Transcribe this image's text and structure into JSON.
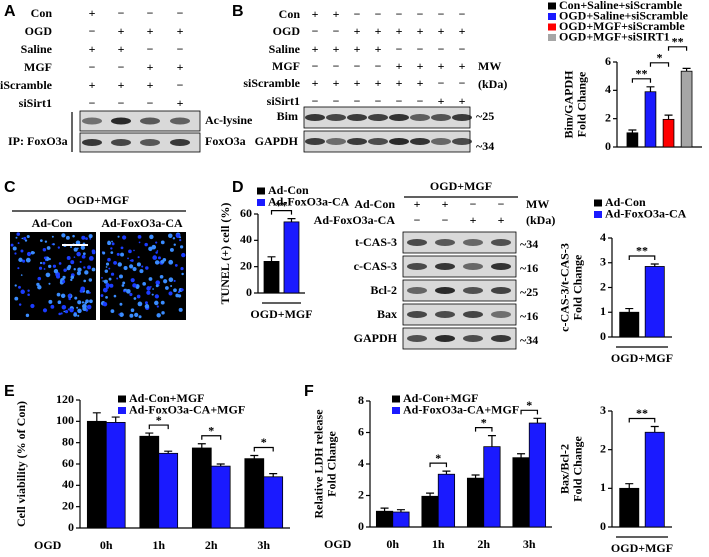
{
  "letters": [
    "A",
    "B",
    "C",
    "D",
    "E",
    "F"
  ],
  "panel_a": {
    "rows": [
      {
        "label": "Con",
        "signs": [
          "+",
          "−",
          "−",
          "−"
        ]
      },
      {
        "label": "OGD",
        "signs": [
          "−",
          "+",
          "+",
          "+"
        ]
      },
      {
        "label": "Saline",
        "signs": [
          "+",
          "+",
          "−",
          "−"
        ]
      },
      {
        "label": "MGF",
        "signs": [
          "−",
          "−",
          "+",
          "+"
        ]
      },
      {
        "label": "siScramble",
        "signs": [
          "+",
          "+",
          "+",
          "−"
        ]
      },
      {
        "label": "siSirt1",
        "signs": [
          "−",
          "−",
          "−",
          "+"
        ]
      }
    ],
    "blots": [
      "Ac-lysine",
      "FoxO3a"
    ],
    "ip_label": "IP: FoxO3a"
  },
  "panel_b": {
    "rows": [
      {
        "label": "Con",
        "signs": [
          "+",
          "+",
          "−",
          "−",
          "−",
          "−",
          "−",
          "−"
        ]
      },
      {
        "label": "OGD",
        "signs": [
          "−",
          "−",
          "+",
          "+",
          "+",
          "+",
          "+",
          "+"
        ]
      },
      {
        "label": "Saline",
        "signs": [
          "+",
          "+",
          "+",
          "+",
          "−",
          "−",
          "−",
          "−"
        ]
      },
      {
        "label": "MGF",
        "signs": [
          "−",
          "−",
          "−",
          "−",
          "+",
          "+",
          "+",
          "+"
        ]
      },
      {
        "label": "siScramble",
        "signs": [
          "+",
          "+",
          "+",
          "+",
          "+",
          "+",
          "−",
          "−"
        ]
      },
      {
        "label": "siSirt1",
        "signs": [
          "−",
          "−",
          "−",
          "−",
          "−",
          "−",
          "+",
          "+"
        ]
      }
    ],
    "mw_title": "MW",
    "mw_unit": "(kDa)",
    "blots": [
      {
        "label": "Bim",
        "mw": "~25"
      },
      {
        "label": "GAPDH",
        "mw": "~34"
      }
    ]
  },
  "panel_c": {
    "condition": "OGD+MGF",
    "images": [
      "Ad-Con",
      "Ad-FoxO3a-CA"
    ]
  },
  "panel_d": {
    "condition": "OGD+MGF",
    "rows": [
      {
        "label": "Ad-Con",
        "signs": [
          "+",
          "+",
          "−",
          "−"
        ]
      },
      {
        "label": "Ad-FoxO3a-CA",
        "signs": [
          "−",
          "−",
          "+",
          "+"
        ]
      }
    ],
    "mw_title": "MW",
    "mw_unit": "(kDa)",
    "blots": [
      {
        "label": "t-CAS-3",
        "mw": "~34"
      },
      {
        "label": "c-CAS-3",
        "mw": "~16"
      },
      {
        "label": "Bcl-2",
        "mw": "~25"
      },
      {
        "label": "Bax",
        "mw": "~16"
      },
      {
        "label": "GAPDH",
        "mw": "~34"
      }
    ]
  },
  "chart_data": [
    {
      "type": "bar",
      "ylabel": [
        "Bim/GAPDH",
        "Fold Change"
      ],
      "categories": [
        null
      ],
      "series": [
        {
          "name": "Con+Saline+siScramble",
          "color": "#000000",
          "values": [
            1.0
          ],
          "errors": [
            0.2
          ]
        },
        {
          "name": "OGD+Saline+siScramble",
          "color": "#1a1aff",
          "values": [
            3.9
          ],
          "errors": [
            0.35
          ]
        },
        {
          "name": "OGD+MGF+siScramble",
          "color": "#ff0000",
          "values": [
            1.95
          ],
          "errors": [
            0.3
          ]
        },
        {
          "name": "OGD+MGF+siSIRT1",
          "color": "#a6a6a6",
          "values": [
            5.35
          ],
          "errors": [
            0.2
          ]
        }
      ],
      "ylim": [
        0,
        6
      ],
      "yticks": [
        0,
        2,
        4,
        6
      ],
      "significance": [
        "**",
        "*",
        "**"
      ]
    },
    {
      "type": "bar",
      "ylabel": [
        "TUNEL (+) cell (%)"
      ],
      "xlabel": "OGD+MGF",
      "categories": [
        null
      ],
      "series": [
        {
          "name": "Ad-Con",
          "color": "#000000",
          "values": [
            24
          ],
          "errors": [
            3.5
          ]
        },
        {
          "name": "Ad-FoxO3a-CA",
          "color": "#1a1aff",
          "values": [
            54
          ],
          "errors": [
            2.5
          ]
        }
      ],
      "ylim": [
        0,
        60
      ],
      "yticks": [
        0,
        20,
        40,
        60
      ],
      "significance": [
        "**"
      ]
    },
    {
      "type": "bar",
      "ylabel": [
        "c-CAS-3/t-CAS-3",
        "Fold Change"
      ],
      "xlabel": "OGD+MGF",
      "categories": [
        null
      ],
      "series": [
        {
          "name": "Ad-Con",
          "color": "#000000",
          "values": [
            1.0
          ],
          "errors": [
            0.15
          ]
        },
        {
          "name": "Ad-FoxO3a-CA",
          "color": "#1a1aff",
          "values": [
            2.85
          ],
          "errors": [
            0.1
          ]
        }
      ],
      "ylim": [
        0,
        4
      ],
      "yticks": [
        0,
        1,
        2,
        3,
        4
      ],
      "significance": [
        "**"
      ]
    },
    {
      "type": "bar",
      "ylabel": [
        "Cell viability (% of Con)"
      ],
      "xlabel": "OGD",
      "categories": [
        "0h",
        "1h",
        "2h",
        "3h"
      ],
      "series": [
        {
          "name": "Ad-Con+MGF",
          "color": "#000000",
          "values": [
            100,
            86,
            75,
            65
          ],
          "errors": [
            8,
            3,
            4,
            3
          ]
        },
        {
          "name": "Ad-FoxO3a-CA+MGF",
          "color": "#1a1aff",
          "values": [
            99,
            70,
            58,
            48
          ],
          "errors": [
            5,
            2,
            2,
            3
          ]
        }
      ],
      "ylim": [
        0,
        120
      ],
      "yticks": [
        0,
        20,
        40,
        60,
        80,
        100,
        120
      ],
      "significance": [
        null,
        "*",
        "*",
        "*"
      ]
    },
    {
      "type": "bar",
      "ylabel": [
        "Relative LDH release",
        "Fold Change"
      ],
      "xlabel": "OGD",
      "categories": [
        "0h",
        "1h",
        "2h",
        "3h"
      ],
      "series": [
        {
          "name": "Ad-Con+MGF",
          "color": "#000000",
          "values": [
            1.0,
            1.95,
            3.1,
            4.4
          ],
          "errors": [
            0.2,
            0.2,
            0.2,
            0.25
          ]
        },
        {
          "name": "Ad-FoxO3a-CA+MGF",
          "color": "#1a1aff",
          "values": [
            0.95,
            3.35,
            5.1,
            6.6
          ],
          "errors": [
            0.15,
            0.2,
            0.7,
            0.3
          ]
        }
      ],
      "ylim": [
        0,
        8
      ],
      "yticks": [
        0,
        2,
        4,
        6,
        8
      ],
      "significance": [
        null,
        "*",
        "*",
        "*"
      ]
    },
    {
      "type": "bar",
      "ylabel": [
        "Bax/Bcl-2",
        "Fold Change"
      ],
      "xlabel": "OGD+MGF",
      "categories": [
        null
      ],
      "series": [
        {
          "color": "#000000",
          "values": [
            1.0
          ],
          "errors": [
            0.12
          ]
        },
        {
          "color": "#1a1aff",
          "values": [
            2.45
          ],
          "errors": [
            0.15
          ]
        }
      ],
      "ylim": [
        0,
        3
      ],
      "yticks": [
        0,
        1,
        2,
        3
      ],
      "significance": [
        "**"
      ]
    }
  ]
}
